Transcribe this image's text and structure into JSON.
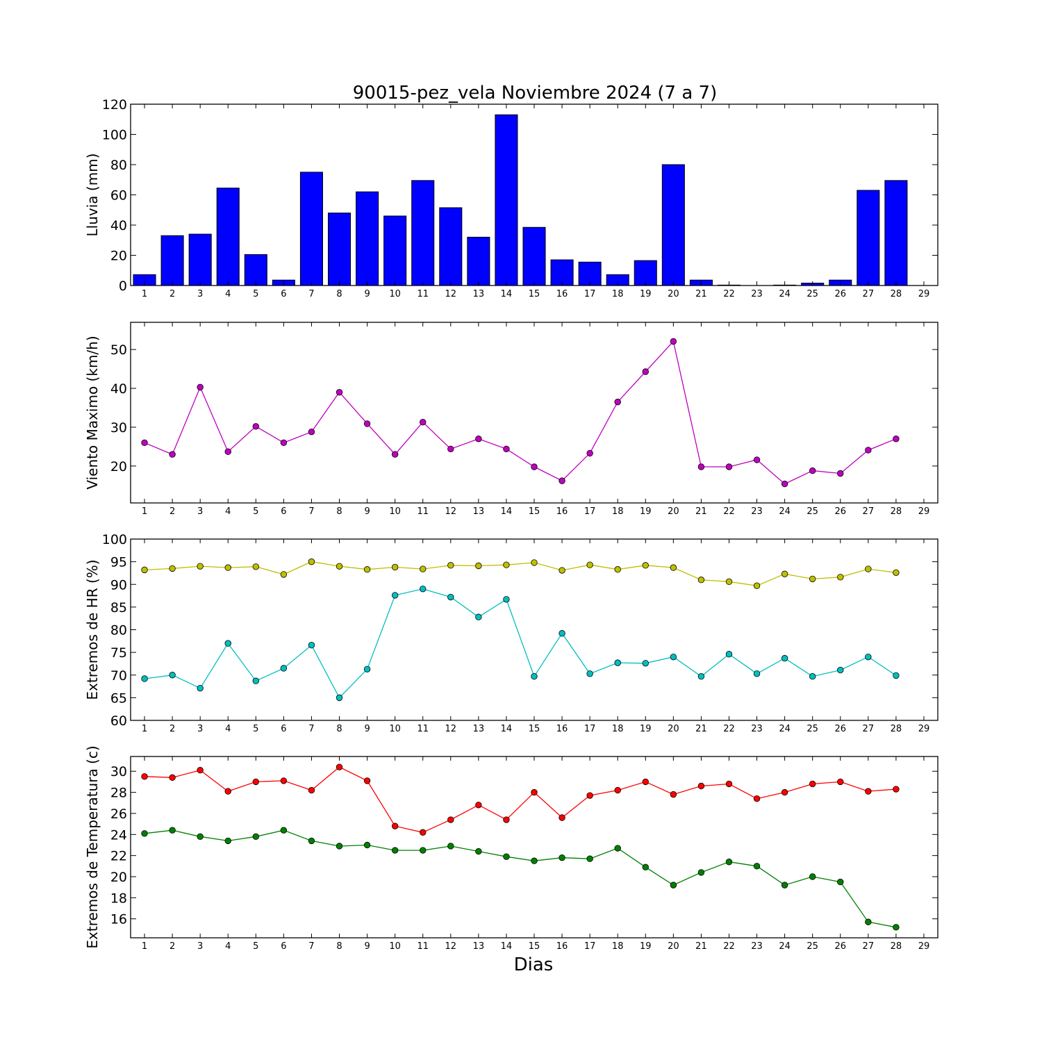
{
  "chart_data": {
    "title": "90015-pez_vela Noviembre 2024  (7 a 7)",
    "xlabel": "Dias",
    "xticks": [
      1,
      2,
      3,
      4,
      5,
      6,
      7,
      8,
      9,
      10,
      11,
      12,
      13,
      14,
      15,
      16,
      17,
      18,
      19,
      20,
      21,
      22,
      23,
      24,
      25,
      26,
      27,
      28,
      29
    ],
    "xlim": [
      0.5,
      29.5
    ],
    "panels": [
      {
        "type": "bar",
        "ylabel": "Lluvia (mm)",
        "ylim": [
          0,
          120
        ],
        "yticks": [
          0,
          20,
          40,
          60,
          80,
          100,
          120
        ],
        "x": [
          1,
          2,
          3,
          4,
          5,
          6,
          7,
          8,
          9,
          10,
          11,
          12,
          13,
          14,
          15,
          16,
          17,
          18,
          19,
          20,
          21,
          22,
          23,
          24,
          25,
          26,
          27,
          28
        ],
        "series": [
          {
            "color": "#0000ff",
            "values": [
              7.2,
              33,
              34,
              64.5,
              20.5,
              3.6,
              75,
              48,
              62,
              46,
              69.5,
              51.5,
              32,
              113,
              38.5,
              17,
              15.5,
              7.2,
              16.5,
              80,
              3.6,
              0.3,
              0,
              0.3,
              1.6,
              3.6,
              63,
              69.5
            ]
          }
        ]
      },
      {
        "type": "line",
        "ylabel": "Viento Maximo (km/h)",
        "ylim": [
          10.5,
          57
        ],
        "yticks": [
          20,
          30,
          40,
          50
        ],
        "x": [
          1,
          2,
          3,
          4,
          5,
          6,
          7,
          8,
          9,
          10,
          11,
          12,
          13,
          14,
          15,
          16,
          17,
          18,
          19,
          20,
          21,
          22,
          23,
          24,
          25,
          26,
          27,
          28
        ],
        "series": [
          {
            "color": "#bf00bf",
            "values": [
              26,
              23,
              40.3,
              23.7,
              30.2,
              26,
              28.8,
              39,
              30.9,
              23,
              31.3,
              24.4,
              27,
              24.4,
              19.8,
              16.2,
              23.3,
              36.5,
              44.3,
              52.1,
              19.8,
              19.8,
              21.6,
              15.4,
              18.8,
              18.1,
              24.1,
              27
            ]
          }
        ]
      },
      {
        "type": "line",
        "ylabel": "Extremos de HR (%)",
        "ylim": [
          60,
          100
        ],
        "yticks": [
          60,
          65,
          70,
          75,
          80,
          85,
          90,
          95,
          100
        ],
        "x": [
          1,
          2,
          3,
          4,
          5,
          6,
          7,
          8,
          9,
          10,
          11,
          12,
          13,
          14,
          15,
          16,
          17,
          18,
          19,
          20,
          21,
          22,
          23,
          24,
          25,
          26,
          27,
          28
        ],
        "series": [
          {
            "color": "#bfbf00",
            "values": [
              93.2,
              93.5,
              94,
              93.7,
              93.9,
              92.2,
              95,
              94,
              93.3,
              93.8,
              93.4,
              94.2,
              94.1,
              94.3,
              94.8,
              93.1,
              94.3,
              93.3,
              94.2,
              93.7,
              91,
              90.6,
              89.7,
              92.3,
              91.2,
              91.6,
              93.4,
              92.6
            ]
          },
          {
            "color": "#00bfbf",
            "values": [
              69.2,
              70,
              67.1,
              77,
              68.7,
              71.5,
              76.6,
              65,
              71.3,
              87.6,
              89,
              87.2,
              82.8,
              86.7,
              69.7,
              79.2,
              70.3,
              72.7,
              72.6,
              74,
              69.7,
              74.6,
              70.3,
              73.7,
              69.7,
              71.1,
              74,
              69.9
            ]
          }
        ]
      },
      {
        "type": "line",
        "ylabel": "Extremos de Temperatura (c)",
        "ylim": [
          14.2,
          31.4
        ],
        "yticks": [
          16,
          18,
          20,
          22,
          24,
          26,
          28,
          30
        ],
        "x": [
          1,
          2,
          3,
          4,
          5,
          6,
          7,
          8,
          9,
          10,
          11,
          12,
          13,
          14,
          15,
          16,
          17,
          18,
          19,
          20,
          21,
          22,
          23,
          24,
          25,
          26,
          27,
          28
        ],
        "series": [
          {
            "color": "#ff0000",
            "values": [
              29.5,
              29.4,
              30.1,
              28.1,
              29,
              29.1,
              28.2,
              30.4,
              29.1,
              24.8,
              24.2,
              25.4,
              26.8,
              25.4,
              28,
              25.6,
              27.7,
              28.2,
              29,
              27.8,
              28.6,
              28.8,
              27.4,
              28,
              28.8,
              29,
              28.1,
              28.3
            ]
          },
          {
            "color": "#008000",
            "values": [
              24.1,
              24.4,
              23.8,
              23.4,
              23.8,
              24.4,
              23.4,
              22.9,
              23,
              22.5,
              22.5,
              22.9,
              22.4,
              21.9,
              21.5,
              21.8,
              21.7,
              22.7,
              20.9,
              19.2,
              20.4,
              21.4,
              21,
              19.2,
              20,
              19.5,
              15.7,
              15.2
            ]
          }
        ]
      }
    ]
  }
}
